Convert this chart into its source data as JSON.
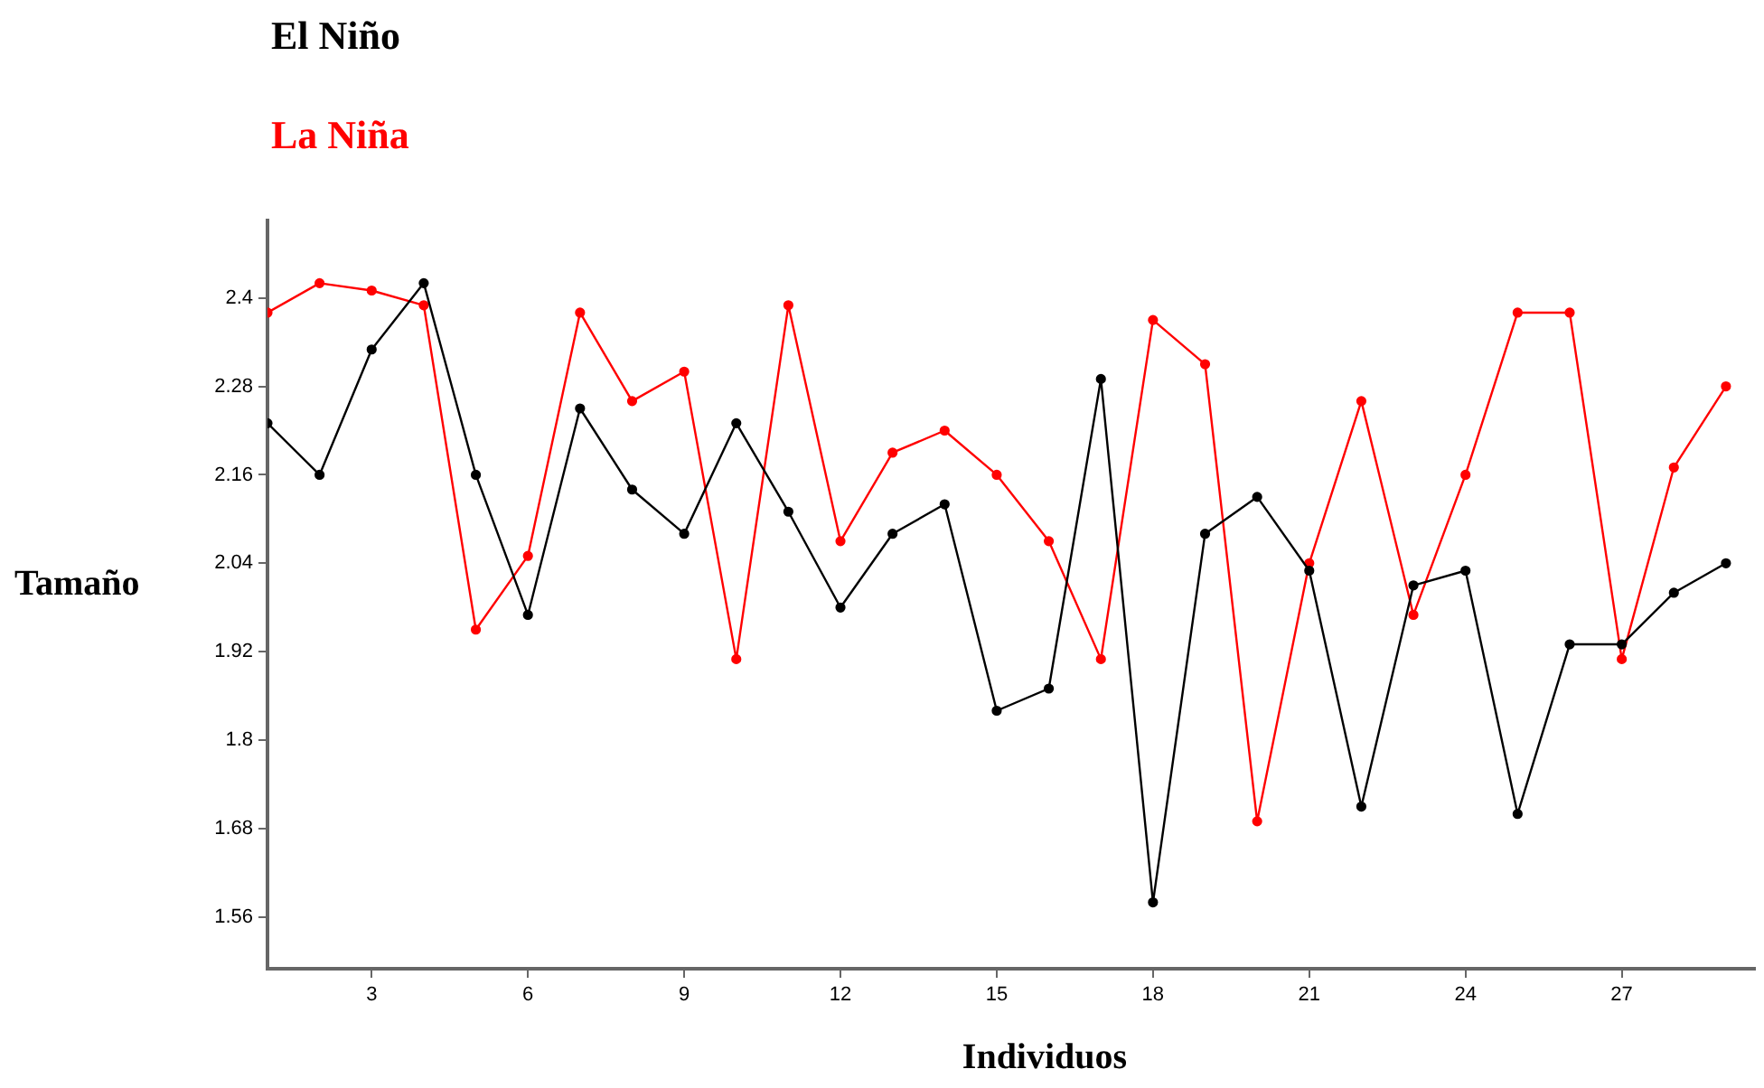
{
  "chart_data": {
    "type": "line",
    "xlabel": "Individuos",
    "ylabel": "Tamaño",
    "x": [
      1,
      2,
      3,
      4,
      5,
      6,
      7,
      8,
      9,
      10,
      11,
      12,
      13,
      14,
      15,
      16,
      17,
      18,
      19,
      20,
      21,
      22,
      23,
      24,
      25,
      26,
      27,
      28,
      29
    ],
    "series": [
      {
        "name": "El Niño",
        "color": "#000000",
        "values": [
          2.23,
          2.16,
          2.33,
          2.42,
          2.16,
          1.97,
          2.25,
          2.14,
          2.08,
          2.23,
          2.11,
          1.98,
          2.08,
          2.12,
          1.84,
          1.87,
          2.29,
          1.58,
          2.08,
          2.13,
          2.03,
          1.71,
          2.01,
          2.03,
          1.7,
          1.93,
          1.93,
          2.0,
          2.04
        ]
      },
      {
        "name": "La Niña",
        "color": "#ff0000",
        "values": [
          2.38,
          2.42,
          2.41,
          2.39,
          1.95,
          2.05,
          2.38,
          2.26,
          2.3,
          1.91,
          2.39,
          2.07,
          2.19,
          2.22,
          2.16,
          2.07,
          1.91,
          2.37,
          2.31,
          1.69,
          2.04,
          2.26,
          1.97,
          2.16,
          2.38,
          2.38,
          1.91,
          2.17,
          2.28
        ]
      }
    ],
    "xlim": [
      1,
      29.55
    ],
    "xticks": [
      3,
      6,
      9,
      12,
      15,
      18,
      21,
      24,
      27
    ],
    "ylim": [
      1.49,
      2.505
    ],
    "yticks": [
      1.56,
      1.68,
      1.8,
      1.92,
      2.04,
      2.16,
      2.28,
      2.4
    ],
    "legend": "top left",
    "marker": "circle",
    "line_style": "solid"
  }
}
